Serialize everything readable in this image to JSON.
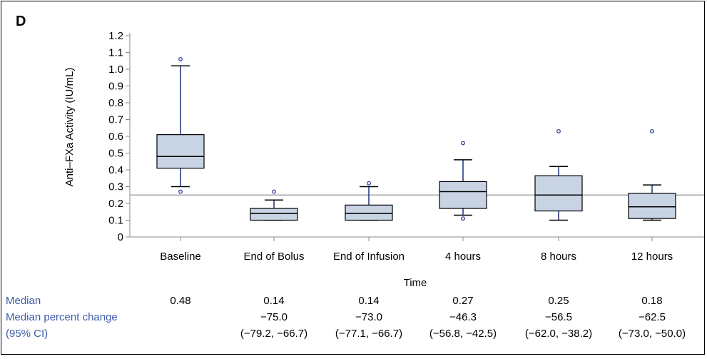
{
  "panel_label": "D",
  "chart_data": {
    "type": "boxplot",
    "xlabel": "Time",
    "ylabel": "Anti–FXa Activity (IU/mL)",
    "ylim": [
      0,
      1.2
    ],
    "yticks": [
      "0",
      "0.1",
      "0.2",
      "0.3",
      "0.4",
      "0.5",
      "0.6",
      "0.7",
      "0.8",
      "0.9",
      "1.0",
      "1.1",
      "1.2"
    ],
    "reference_line": 0.25,
    "grid": false,
    "categories": [
      "Baseline",
      "End of Bolus",
      "End of Infusion",
      "4 hours",
      "8 hours",
      "12 hours"
    ],
    "boxes": [
      {
        "whisker_low": 0.3,
        "q1": 0.41,
        "median": 0.48,
        "q3": 0.61,
        "whisker_high": 1.02,
        "outliers": [
          0.27,
          1.06
        ]
      },
      {
        "whisker_low": 0.1,
        "q1": 0.1,
        "median": 0.14,
        "q3": 0.17,
        "whisker_high": 0.22,
        "outliers": [
          0.27
        ]
      },
      {
        "whisker_low": 0.1,
        "q1": 0.1,
        "median": 0.14,
        "q3": 0.19,
        "whisker_high": 0.3,
        "outliers": [
          0.32
        ]
      },
      {
        "whisker_low": 0.13,
        "q1": 0.17,
        "median": 0.27,
        "q3": 0.33,
        "whisker_high": 0.46,
        "outliers": [
          0.11,
          0.56
        ]
      },
      {
        "whisker_low": 0.1,
        "q1": 0.155,
        "median": 0.25,
        "q3": 0.365,
        "whisker_high": 0.42,
        "outliers": [
          0.63
        ]
      },
      {
        "whisker_low": 0.1,
        "q1": 0.11,
        "median": 0.18,
        "q3": 0.26,
        "whisker_high": 0.31,
        "outliers": [
          0.63
        ]
      }
    ],
    "colors": {
      "box_fill": "#c8d4e4",
      "whisker": "#1f2f7a",
      "outlier": "#2a3f95",
      "reference_line": "#a6a6a6",
      "axis": "#888888"
    }
  },
  "footer": {
    "row_labels": {
      "median": "Median",
      "pct_change": "Median percent change",
      "ci": "(95% CI)"
    },
    "medians": [
      "0.48",
      "0.14",
      "0.14",
      "0.27",
      "0.25",
      "0.18"
    ],
    "pct_changes": [
      "",
      "−75.0",
      "−73.0",
      "−46.3",
      "−56.5",
      "−62.5"
    ],
    "cis": [
      "",
      "(−79.2, −66.7)",
      "(−77.1, −66.7)",
      "(−56.8, −42.5)",
      "(−62.0, −38.2)",
      "(−73.0, −50.0)"
    ]
  }
}
